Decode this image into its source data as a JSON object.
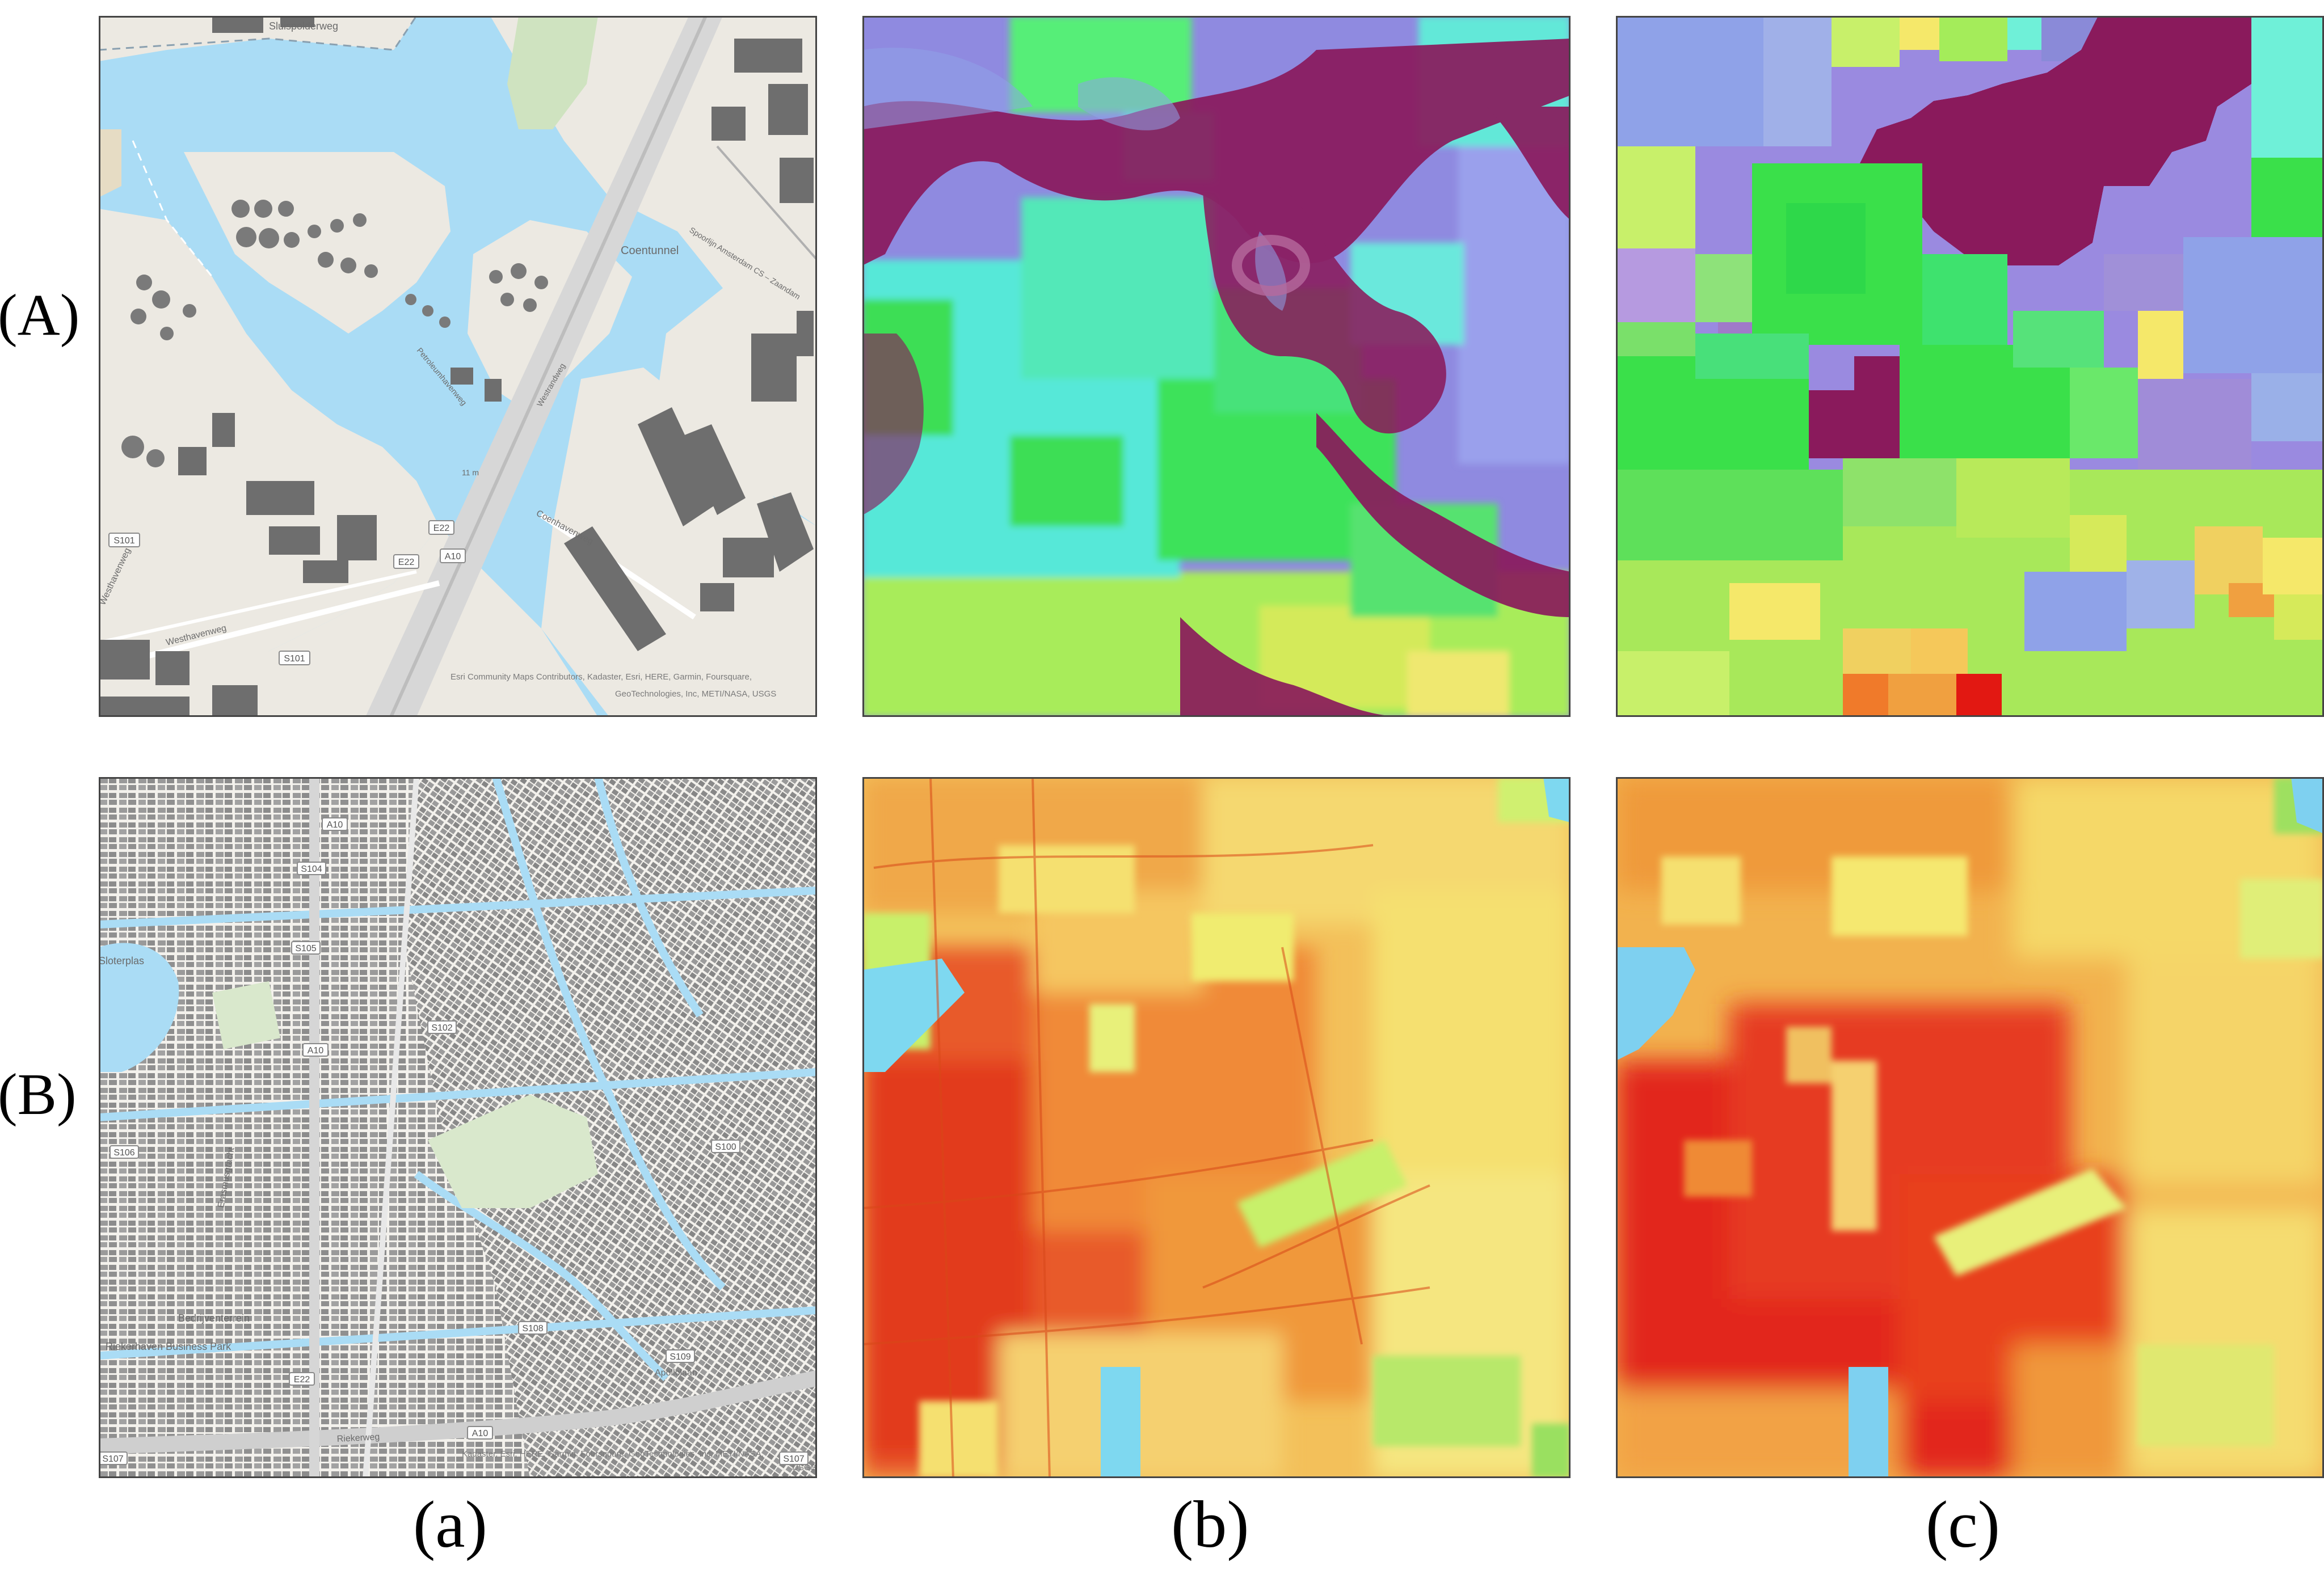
{
  "figure": {
    "row_labels": [
      "(A)",
      "(B)"
    ],
    "col_labels": [
      "(a)",
      "(b)",
      "(c)"
    ]
  },
  "map_a": {
    "labels": {
      "top_road": "Sluispolderweg",
      "tunnel": "Coentunnel",
      "railway": "Spoorlijn Amsterdam CS – Zaandam",
      "road_coen": "Coenhavenweg",
      "road_west": "Westhavenweg",
      "road_west2": "Westhavenweg",
      "road_petro": "Petroleumhavenweg",
      "road_westrandweg": "Westrandweg",
      "clearance": "11 m"
    },
    "shields": [
      "S101",
      "E22",
      "E22",
      "A10",
      "S101"
    ],
    "attribution_line1": "Esri Community Maps Contributors, Kadaster, Esri, HERE, Garmin, Foursquare,",
    "attribution_line2": "GeoTechnologies, Inc, METI/NASA, USGS"
  },
  "map_b": {
    "labels": {
      "business_park": "Riekerhaven Business Park",
      "bedrijventerrein": "Bedrijventerrein",
      "road_rieker": "Riekerweg",
      "road_apollolaan": "Apollolaan",
      "road_erasmus": "Erasmusgracht",
      "plas": "Sloterplas"
    },
    "shields": [
      "S104",
      "A10",
      "S105",
      "S106",
      "S107",
      "S108",
      "S109",
      "S100",
      "A10",
      "A10",
      "E22",
      "S107",
      "S102"
    ],
    "attribution_line1": "Kadaster, Esri, HERE, Garmin, Foursquare, GeoTechnologies, Inc, METI/NASA,",
    "attribution_line2": "USGS"
  },
  "colors": {
    "water": "#aadcf5",
    "land": "#ece9e2",
    "building": "#6e6e6e",
    "purple": "#8a1a5c",
    "periwinkle": "#8fa2e8",
    "cyan": "#6ff0d8",
    "green": "#3ae04a",
    "lime": "#c8f05a",
    "yellow": "#f5e86a",
    "orange": "#f09a3a",
    "red": "#e01a12",
    "sky": "#7ed0f0"
  }
}
